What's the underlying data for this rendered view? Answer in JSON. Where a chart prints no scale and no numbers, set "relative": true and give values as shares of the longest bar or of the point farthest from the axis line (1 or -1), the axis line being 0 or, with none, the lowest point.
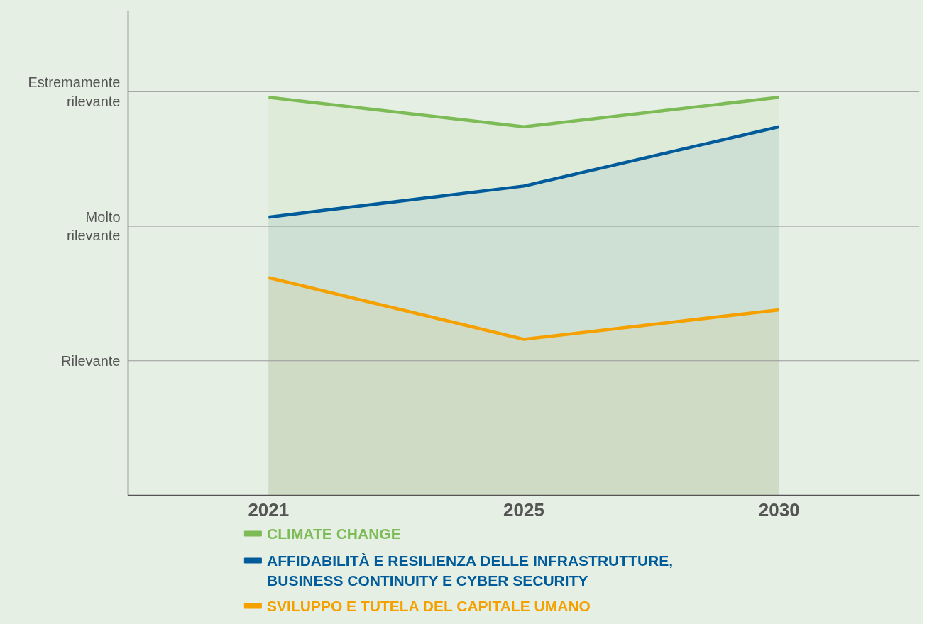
{
  "chart_data": {
    "type": "area",
    "relative": true,
    "categories": [
      "2021",
      "2025",
      "2030"
    ],
    "series": [
      {
        "name": "CLIMATE CHANGE",
        "color": "#7dbb57",
        "values": [
          1,
          0.926,
          1
        ]
      },
      {
        "name": "AFFIDABILITÀ E RESILIENZA DELLE INFRASTRUTTURE,\nBUSINESS CONTINUITY E CYBER SECURITY",
        "color": "#005b9a",
        "values": [
          0.699,
          0.777,
          0.926
        ]
      },
      {
        "name": "SVILUPPO E TUTELA DEL CAPITALE UMANO",
        "color": "#f4a100",
        "values": [
          0.547,
          0.392,
          0.466
        ]
      }
    ],
    "ref_lines": [
      {
        "axis": "y",
        "value": 0.338,
        "label": "Rilevante",
        "color": "#999999"
      },
      {
        "axis": "y",
        "value": 0.676,
        "label": "Molto\nrilevante",
        "color": "#999999"
      },
      {
        "axis": "y",
        "value": 1.014,
        "label": "Estremamente\nrilevante",
        "color": "#999999"
      }
    ],
    "legend": "bottom",
    "line_style": "solid"
  }
}
